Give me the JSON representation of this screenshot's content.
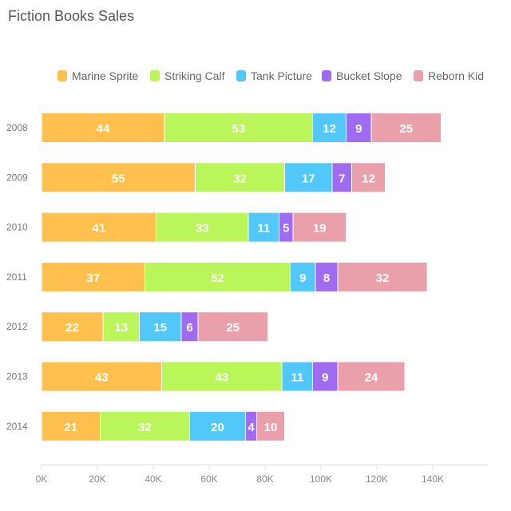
{
  "chart_data": {
    "type": "bar",
    "orientation": "horizontal",
    "stacked": true,
    "title": "Fiction Books Sales",
    "categories": [
      "2008",
      "2009",
      "2010",
      "2011",
      "2012",
      "2013",
      "2014"
    ],
    "series": [
      {
        "name": "Marine Sprite",
        "color": "#FFC04D",
        "values": [
          44,
          55,
          41,
          37,
          22,
          43,
          21
        ]
      },
      {
        "name": "Striking Calf",
        "color": "#BAF55A",
        "values": [
          53,
          32,
          33,
          52,
          13,
          43,
          32
        ]
      },
      {
        "name": "Tank Picture",
        "color": "#52C8FA",
        "values": [
          12,
          17,
          11,
          9,
          15,
          11,
          20
        ]
      },
      {
        "name": "Bucket Slope",
        "color": "#9F6BF0",
        "values": [
          9,
          7,
          5,
          8,
          6,
          9,
          4
        ]
      },
      {
        "name": "Reborn Kid",
        "color": "#E9A0AB",
        "values": [
          25,
          12,
          19,
          32,
          25,
          24,
          10
        ]
      }
    ],
    "xlim": [
      0,
      160
    ],
    "xticks": [
      0,
      20,
      40,
      60,
      80,
      100,
      120,
      140
    ],
    "xtick_labels": [
      "0K",
      "20K",
      "40K",
      "60K",
      "80K",
      "100K",
      "120K",
      "140K"
    ],
    "xlabel": "",
    "ylabel": "",
    "legend_position": "top",
    "grid": false
  }
}
